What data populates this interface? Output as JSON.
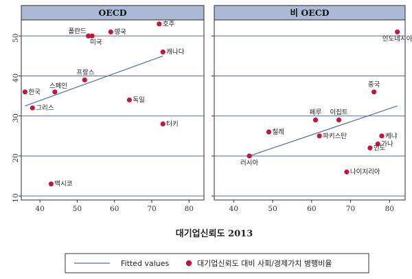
{
  "chart_data": {
    "type": "scatter",
    "xlabel": "대기업신뢰도 2013",
    "ylabel": "",
    "xlim": [
      35,
      84
    ],
    "ylim": [
      9,
      54
    ],
    "x_ticks": [
      40,
      50,
      60,
      70,
      80
    ],
    "y_ticks": [
      10,
      20,
      30,
      40,
      50
    ],
    "grid": true,
    "legend_position": "bottom",
    "legend": {
      "fit_label": "Fitted values",
      "point_label": "대기업신뢰도 대비 사회/경제가치 병행비율"
    },
    "point_color": "#c8143c",
    "fit_color": "#4a6fa5",
    "strip_color": "#a9b9d6",
    "panels": [
      {
        "title": "OECD",
        "points": [
          {
            "label": "호주",
            "x": 72,
            "y": 53
          },
          {
            "label": "폴란드",
            "x": 53,
            "y": 50
          },
          {
            "label": "미국",
            "x": 54,
            "y": 50
          },
          {
            "label": "영국",
            "x": 59,
            "y": 51
          },
          {
            "label": "캐나다",
            "x": 73,
            "y": 46
          },
          {
            "label": "프랑스",
            "x": 52,
            "y": 39
          },
          {
            "label": "스페인",
            "x": 44,
            "y": 36
          },
          {
            "label": "한국",
            "x": 36,
            "y": 36
          },
          {
            "label": "독일",
            "x": 64,
            "y": 34
          },
          {
            "label": "그리스",
            "x": 38,
            "y": 32
          },
          {
            "label": "터키",
            "x": 73,
            "y": 28
          },
          {
            "label": "멕시코",
            "x": 43,
            "y": 13
          }
        ],
        "fit": {
          "x": [
            36,
            73
          ],
          "y": [
            32.5,
            45
          ]
        }
      },
      {
        "title": "비 OECD",
        "points": [
          {
            "label": "인도네시아",
            "x": 82,
            "y": 51
          },
          {
            "label": "중국",
            "x": 76,
            "y": 36
          },
          {
            "label": "페루",
            "x": 61,
            "y": 29
          },
          {
            "label": "이집트",
            "x": 67,
            "y": 29
          },
          {
            "label": "칠레",
            "x": 49,
            "y": 26
          },
          {
            "label": "파키스탄",
            "x": 62,
            "y": 25
          },
          {
            "label": "케냐",
            "x": 78,
            "y": 25
          },
          {
            "label": "가나",
            "x": 77,
            "y": 23
          },
          {
            "label": "인도",
            "x": 75,
            "y": 22
          },
          {
            "label": "러시아",
            "x": 44,
            "y": 20
          },
          {
            "label": "나이지리아",
            "x": 69,
            "y": 16
          }
        ],
        "fit": {
          "x": [
            44,
            82
          ],
          "y": [
            20,
            32.5
          ]
        }
      }
    ]
  }
}
